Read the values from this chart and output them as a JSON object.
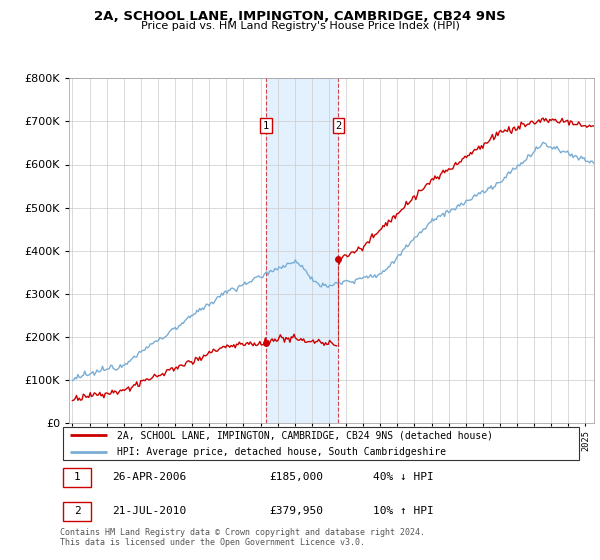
{
  "title1": "2A, SCHOOL LANE, IMPINGTON, CAMBRIDGE, CB24 9NS",
  "title2": "Price paid vs. HM Land Registry's House Price Index (HPI)",
  "legend_line1": "2A, SCHOOL LANE, IMPINGTON, CAMBRIDGE, CB24 9NS (detached house)",
  "legend_line2": "HPI: Average price, detached house, South Cambridgeshire",
  "annotation1_date": "26-APR-2006",
  "annotation1_price": "£185,000",
  "annotation1_hpi": "40% ↓ HPI",
  "annotation2_date": "21-JUL-2010",
  "annotation2_price": "£379,950",
  "annotation2_hpi": "10% ↑ HPI",
  "footer": "Contains HM Land Registry data © Crown copyright and database right 2024.\nThis data is licensed under the Open Government Licence v3.0.",
  "sale1_year": 2006.32,
  "sale1_price": 185000,
  "sale2_year": 2010.55,
  "sale2_price": 379950,
  "hpi_color": "#7aadd4",
  "price_color": "#cc0000",
  "shade_color": "#ddeeff",
  "annotation_box_color": "#cc0000",
  "ylim_min": 0,
  "ylim_max": 800000,
  "xlim_min": 1994.8,
  "xlim_max": 2025.5
}
